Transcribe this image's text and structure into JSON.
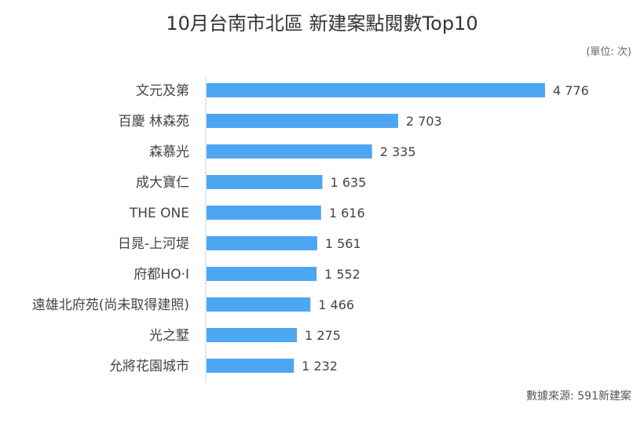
{
  "title": "10月台南市北區 新建案點閱數Top10",
  "unit_note": "(單位: 次)",
  "source_note": "數據來源: 591新建案",
  "colors": {
    "bar": "#4da6f2",
    "axis": "#c8d6e5"
  },
  "chart_data": {
    "type": "bar",
    "orientation": "horizontal",
    "categories": [
      "文元及第",
      "百慶 林森苑",
      "森慕光",
      "成大寶仁",
      "THE ONE",
      "日晁-上河堤",
      "府都HO·I",
      "遠雄北府苑(尚未取得建照)",
      "光之墅",
      "允將花園城市"
    ],
    "values": [
      4776,
      2703,
      2335,
      1635,
      1616,
      1561,
      1552,
      1466,
      1275,
      1232
    ],
    "value_labels": [
      "4 776",
      "2 703",
      "2 335",
      "1 635",
      "1 616",
      "1 561",
      "1 552",
      "1 466",
      "1 275",
      "1 232"
    ],
    "xlim": [
      0,
      4776
    ],
    "grid": false,
    "legend": "none"
  }
}
